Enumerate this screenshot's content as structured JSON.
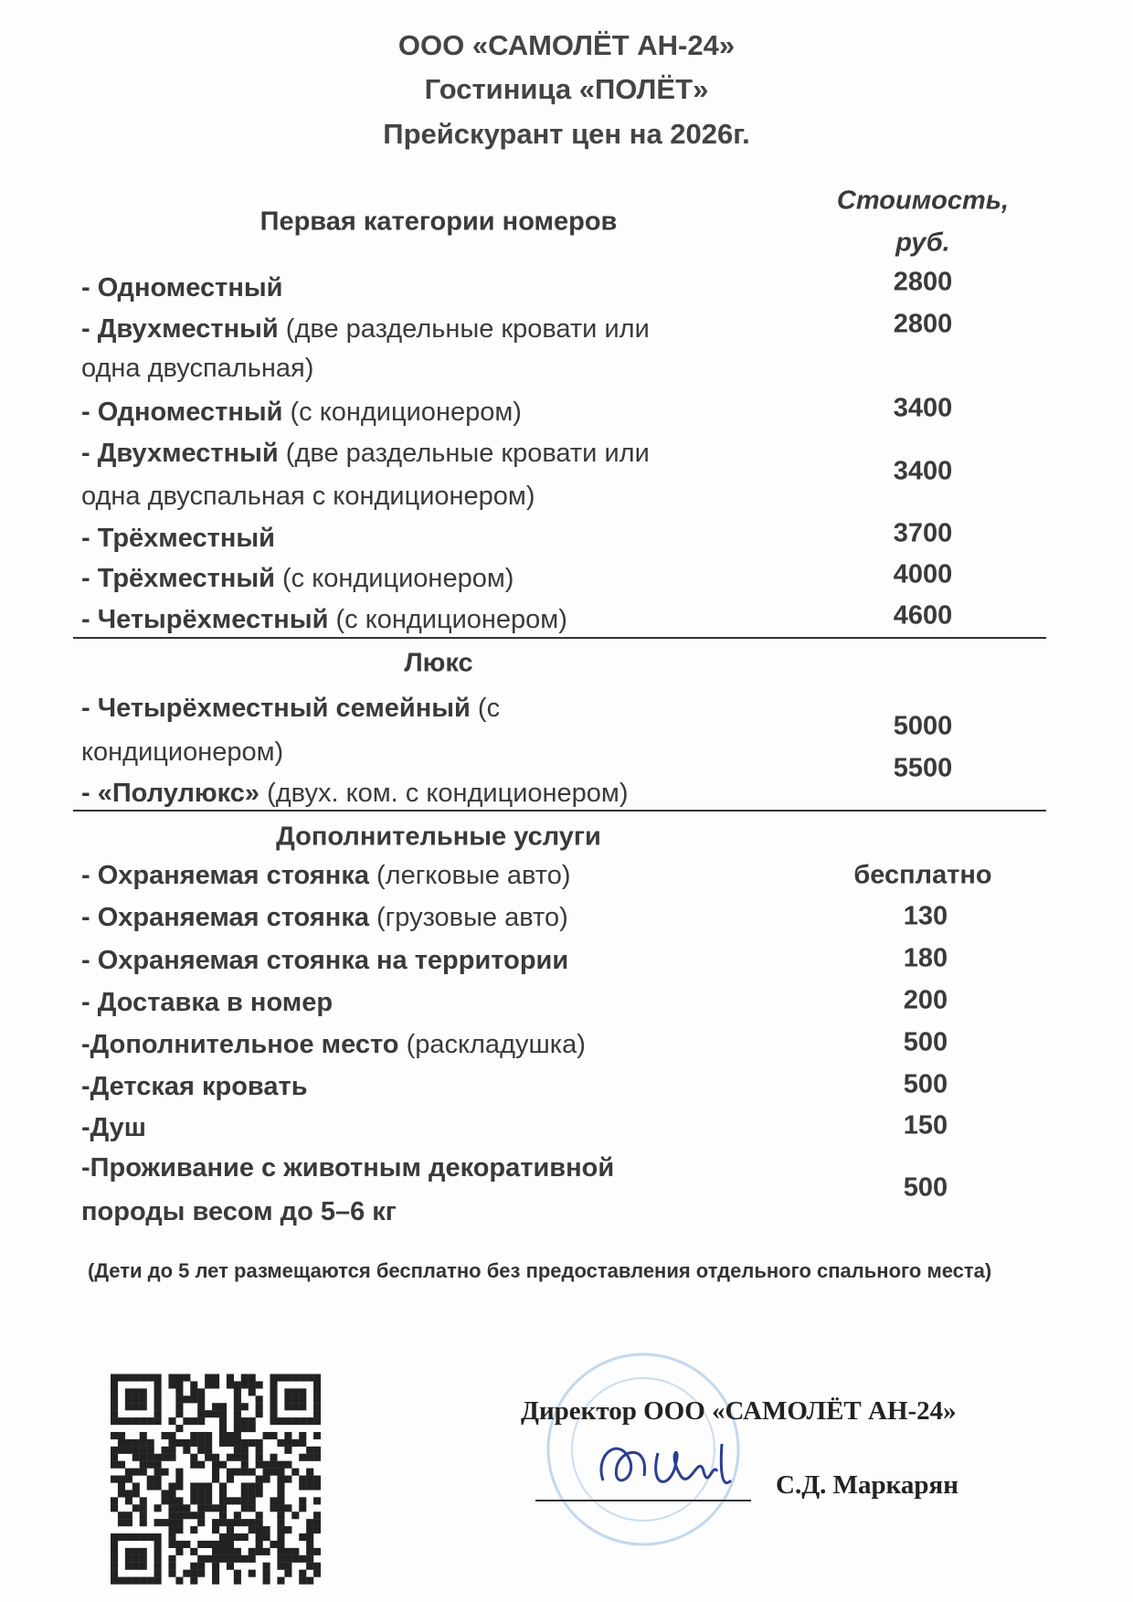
{
  "header": {
    "company": "ООО «САМОЛЁТ АН-24»",
    "hotel": "Гостиница «ПОЛЁТ»",
    "title": "Прейскурант цен на 2026г."
  },
  "price_column": {
    "line1": "Стоимость,",
    "line2": "руб."
  },
  "first_category": {
    "title": "Первая категории номеров",
    "items": [
      {
        "bold": "- Одноместный",
        "normal": "",
        "price": "2800"
      },
      {
        "bold": "- Двухместный",
        "normal": " (две раздельные кровати или",
        "cont": "одна двуспальная)",
        "price": "2800"
      },
      {
        "bold": "- Одноместный",
        "normal": " (с кондиционером)",
        "price": "3400"
      },
      {
        "bold": "- Двухместный",
        "normal": " (две раздельные кровати или",
        "cont": "одна двуспальная с кондиционером)",
        "price": "3400"
      },
      {
        "bold": "- Трёхместный",
        "normal": "",
        "price": "3700"
      },
      {
        "bold": "- Трёхместный",
        "normal": " (с кондиционером)",
        "price": "4000"
      },
      {
        "bold": "- Четырёхместный",
        "normal": " (с кондиционером)",
        "price": "4600"
      }
    ]
  },
  "lux": {
    "title": "Люкс",
    "items": [
      {
        "bold": "- Четырёхместный семейный",
        "normal": " (с",
        "cont": "кондиционером)",
        "price": "5000"
      },
      {
        "bold": "- «Полулюкс»",
        "normal": " (двух. ком. с кондиционером)",
        "price": "5500"
      }
    ]
  },
  "extra": {
    "title": "Дополнительные услуги",
    "items": [
      {
        "bold": "- Охраняемая стоянка",
        "normal": " (легковые авто)",
        "price": "бесплатно"
      },
      {
        "bold": "- Охраняемая стоянка",
        "normal": " (грузовые авто)",
        "price": "130"
      },
      {
        "bold": "- Охраняемая стоянка на территории",
        "normal": "",
        "price": "180"
      },
      {
        "bold": "- Доставка в номер",
        "normal": "",
        "price": "200"
      },
      {
        "bold": "-Дополнительное место",
        "normal": " (раскладушка)",
        "price": "500"
      },
      {
        "bold": "-Детская кровать",
        "normal": "",
        "price": "500"
      },
      {
        "bold": "-Душ",
        "normal": "",
        "price": "150"
      },
      {
        "bold": "-Проживание с животным декоративной",
        "normal": "",
        "cont": "породы весом до 5–6 кг",
        "price": "500"
      }
    ]
  },
  "note": "(Дети до 5 лет размещаются бесплатно без предоставления отдельного спального места)",
  "signature": {
    "position": "Директор ООО «САМОЛЁТ АН-24»",
    "name": "С.Д. Маркарян"
  },
  "colors": {
    "text": "#3a3a3a",
    "stamp": "#8fb8dc",
    "signature_ink": "#2a3f8f"
  }
}
